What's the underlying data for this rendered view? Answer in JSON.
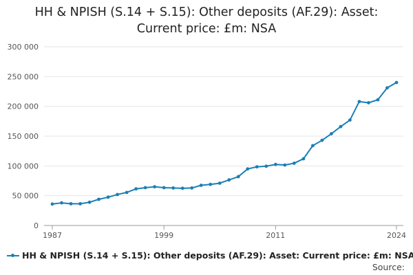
{
  "title_line1": "HH & NPISH (S.14 + S.15): Other deposits (AF.29): Asset:",
  "title_line2": "Current price: £m: NSA",
  "source_label": "Source:",
  "colors": {
    "series": "#1a7fb5",
    "grid": "#e6e6e6",
    "axis": "#999999",
    "text": "#555555"
  },
  "chart_data": {
    "type": "line",
    "title": "HH & NPISH (S.14 + S.15): Other deposits (AF.29): Asset: Current price: £m: NSA",
    "xlabel": "",
    "ylabel": "",
    "xlim": [
      1987,
      2024
    ],
    "ylim": [
      0,
      300000
    ],
    "x_ticks": [
      1987,
      1999,
      2011,
      2024
    ],
    "x_tick_labels": [
      "1987",
      "1999",
      "2011",
      "2024"
    ],
    "y_ticks": [
      0,
      50000,
      100000,
      150000,
      200000,
      250000,
      300000
    ],
    "y_tick_labels": [
      "0",
      "50 000",
      "100 000",
      "150 000",
      "200 000",
      "250 000",
      "300 000"
    ],
    "grid": true,
    "legend_position": "bottom",
    "series": [
      {
        "name": "HH & NPISH (S.14 + S.15): Other deposits (AF.29): Asset: Current price: £m: NSA",
        "x": [
          1987,
          1988,
          1989,
          1990,
          1991,
          1992,
          1993,
          1994,
          1995,
          1996,
          1997,
          1998,
          1999,
          2000,
          2001,
          2002,
          2003,
          2004,
          2005,
          2006,
          2007,
          2008,
          2009,
          2010,
          2011,
          2012,
          2013,
          2014,
          2015,
          2016,
          2017,
          2018,
          2019,
          2020,
          2021,
          2022,
          2023,
          2024
        ],
        "values": [
          36000,
          38000,
          36500,
          36500,
          39000,
          44000,
          47500,
          52000,
          55500,
          61500,
          63500,
          65000,
          63500,
          63000,
          62500,
          63000,
          67500,
          69000,
          71000,
          76500,
          82000,
          95000,
          98500,
          99500,
          102500,
          101500,
          104500,
          112000,
          134000,
          143000,
          154000,
          166000,
          177000,
          208000,
          206000,
          211000,
          231000,
          240000
        ]
      }
    ]
  }
}
